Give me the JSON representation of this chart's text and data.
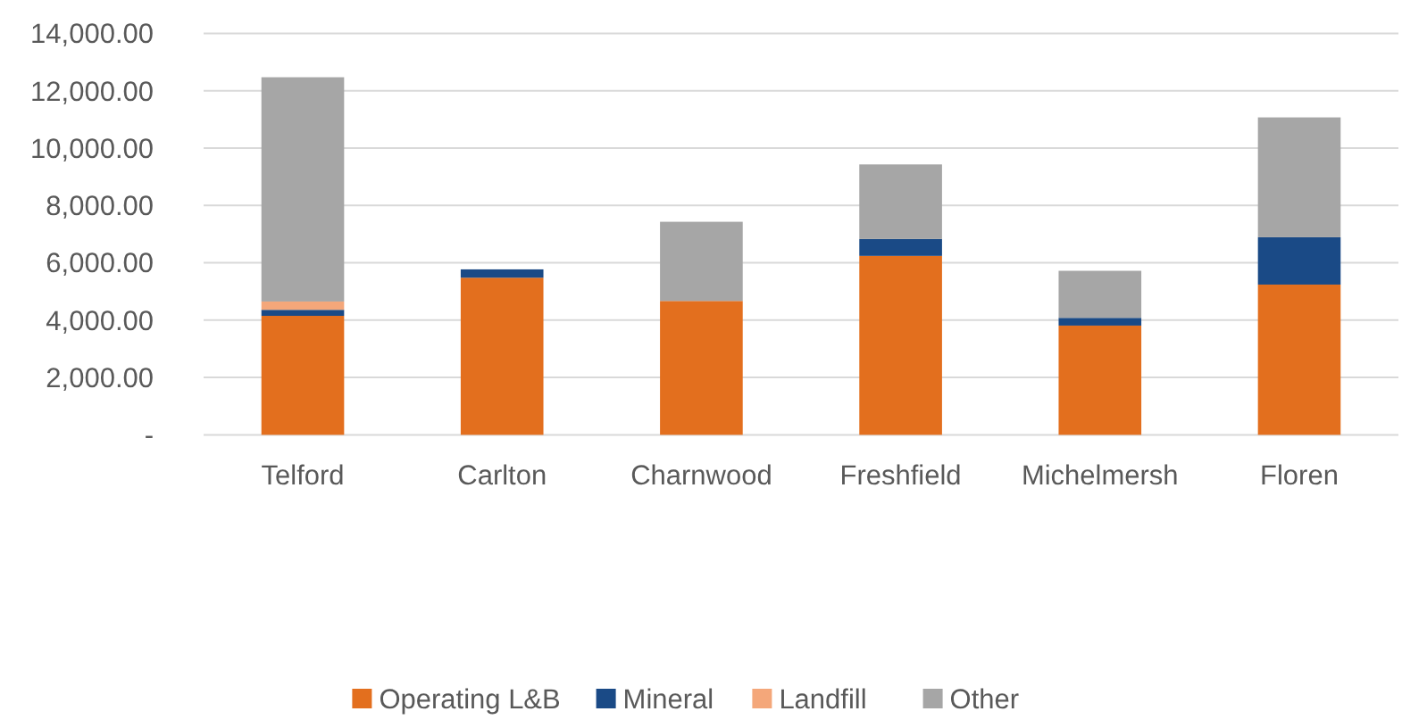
{
  "chart_data": {
    "type": "bar",
    "stacked": true,
    "categories": [
      "Telford",
      "Carlton",
      "Charnwood",
      "Freshfield",
      "Michelmersh",
      "Floren"
    ],
    "series": [
      {
        "name": "Operating L&B",
        "color": "#e36f1e",
        "values": [
          4150,
          5480,
          4670,
          6240,
          3810,
          5240
        ]
      },
      {
        "name": "Mineral",
        "color": "#1a4a86",
        "values": [
          210,
          290,
          0,
          590,
          270,
          1650
        ]
      },
      {
        "name": "Landfill",
        "color": "#f4a77a",
        "values": [
          290,
          0,
          0,
          0,
          0,
          0
        ]
      },
      {
        "name": "Other",
        "color": "#a6a6a6",
        "values": [
          7820,
          0,
          2760,
          2600,
          1640,
          4180
        ]
      }
    ],
    "ylim": [
      0,
      14000
    ],
    "yticks": [
      {
        "value": 0,
        "label": "-"
      },
      {
        "value": 2000,
        "label": "2,000.00"
      },
      {
        "value": 4000,
        "label": "4,000.00"
      },
      {
        "value": 6000,
        "label": "6,000.00"
      },
      {
        "value": 8000,
        "label": "8,000.00"
      },
      {
        "value": 10000,
        "label": "10,000.00"
      },
      {
        "value": 12000,
        "label": "12,000.00"
      },
      {
        "value": 14000,
        "label": "14,000.00"
      }
    ],
    "grid": "y",
    "legend": "bottom"
  }
}
